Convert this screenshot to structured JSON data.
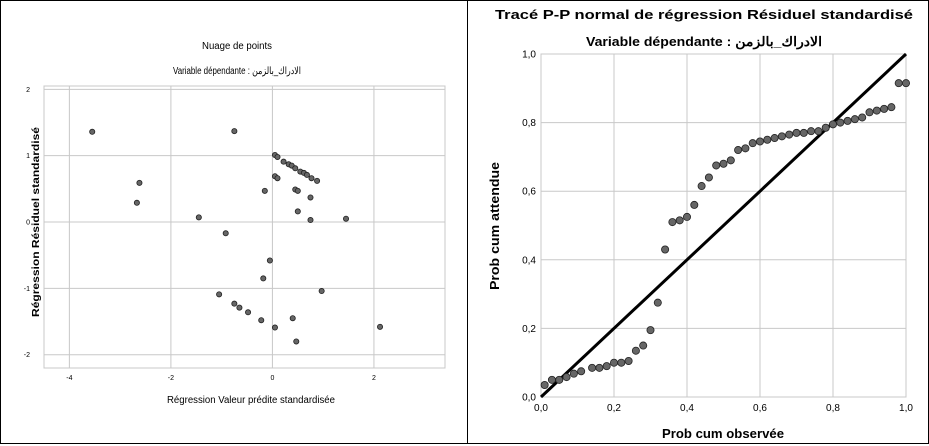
{
  "chart_data": [
    {
      "type": "scatter",
      "title": "Nuage de points",
      "subtitle": "Variable dépendante : الادراك_بالزمن",
      "xlabel": "Régression Valeur prédite standardisée",
      "ylabel": "Régression Résiduel standardisé",
      "xlim": [
        -4.5,
        3.4
      ],
      "ylim": [
        -2.2,
        2.05
      ],
      "x_ticks": [
        -4,
        -2,
        0,
        2
      ],
      "x_tick_labels": [
        "-4",
        "-2",
        "0",
        "2"
      ],
      "y_ticks": [
        -2,
        -1,
        0,
        1,
        2
      ],
      "y_tick_labels": [
        "-2",
        "-1",
        "0",
        "1",
        "2"
      ],
      "grid": true,
      "point_color": "#666666",
      "points": [
        {
          "x": -3.55,
          "y": 1.36
        },
        {
          "x": -2.62,
          "y": 0.59
        },
        {
          "x": -2.67,
          "y": 0.29
        },
        {
          "x": -1.45,
          "y": 0.07
        },
        {
          "x": -0.92,
          "y": -0.17
        },
        {
          "x": -1.05,
          "y": -1.09
        },
        {
          "x": -0.75,
          "y": 1.37
        },
        {
          "x": -0.75,
          "y": -1.23
        },
        {
          "x": -0.65,
          "y": -1.29
        },
        {
          "x": -0.48,
          "y": -1.36
        },
        {
          "x": -0.22,
          "y": -1.48
        },
        {
          "x": -0.18,
          "y": -0.85
        },
        {
          "x": -0.15,
          "y": 0.47
        },
        {
          "x": -0.05,
          "y": -0.58
        },
        {
          "x": 0.05,
          "y": -1.59
        },
        {
          "x": 0.05,
          "y": 1.01
        },
        {
          "x": 0.1,
          "y": 0.98
        },
        {
          "x": 0.05,
          "y": 0.69
        },
        {
          "x": 0.1,
          "y": 0.66
        },
        {
          "x": 0.22,
          "y": 0.91
        },
        {
          "x": 0.32,
          "y": 0.87
        },
        {
          "x": 0.38,
          "y": 0.85
        },
        {
          "x": 0.45,
          "y": 0.81
        },
        {
          "x": 0.55,
          "y": 0.76
        },
        {
          "x": 0.62,
          "y": 0.74
        },
        {
          "x": 0.68,
          "y": 0.71
        },
        {
          "x": 0.77,
          "y": 0.66
        },
        {
          "x": 0.88,
          "y": 0.62
        },
        {
          "x": 0.45,
          "y": 0.49
        },
        {
          "x": 0.5,
          "y": 0.47
        },
        {
          "x": 0.75,
          "y": 0.37
        },
        {
          "x": 0.5,
          "y": 0.16
        },
        {
          "x": 0.75,
          "y": 0.03
        },
        {
          "x": 0.4,
          "y": -1.45
        },
        {
          "x": 0.47,
          "y": -1.8
        },
        {
          "x": 0.97,
          "y": -1.04
        },
        {
          "x": 1.45,
          "y": 0.05
        },
        {
          "x": 2.12,
          "y": -1.58
        }
      ]
    },
    {
      "type": "scatter",
      "title": "Tracé P-P normal de régression Résiduel standardisé",
      "subtitle": "Variable dépendante : الادراك_بالزمن",
      "xlabel": "Prob cum observée",
      "ylabel": "Prob cum attendue",
      "xlim": [
        0,
        1
      ],
      "ylim": [
        0,
        1
      ],
      "x_ticks": [
        0,
        0.2,
        0.4,
        0.6,
        0.8,
        1
      ],
      "x_tick_labels": [
        "0,0",
        "0,2",
        "0,4",
        "0,6",
        "0,8",
        "1,0"
      ],
      "y_ticks": [
        0,
        0.2,
        0.4,
        0.6,
        0.8,
        1
      ],
      "y_tick_labels": [
        "0,0",
        "0,2",
        "0,4",
        "0,6",
        "0,8",
        "1,0"
      ],
      "grid": true,
      "reference_line": [
        [
          0,
          0
        ],
        [
          1,
          1
        ]
      ],
      "point_color": "#666666",
      "points": [
        {
          "x": 0.01,
          "y": 0.035
        },
        {
          "x": 0.03,
          "y": 0.05
        },
        {
          "x": 0.05,
          "y": 0.05
        },
        {
          "x": 0.07,
          "y": 0.058
        },
        {
          "x": 0.09,
          "y": 0.068
        },
        {
          "x": 0.11,
          "y": 0.075
        },
        {
          "x": 0.14,
          "y": 0.085
        },
        {
          "x": 0.16,
          "y": 0.085
        },
        {
          "x": 0.18,
          "y": 0.09
        },
        {
          "x": 0.2,
          "y": 0.1
        },
        {
          "x": 0.22,
          "y": 0.1
        },
        {
          "x": 0.24,
          "y": 0.105
        },
        {
          "x": 0.26,
          "y": 0.135
        },
        {
          "x": 0.28,
          "y": 0.15
        },
        {
          "x": 0.3,
          "y": 0.195
        },
        {
          "x": 0.32,
          "y": 0.275
        },
        {
          "x": 0.34,
          "y": 0.43
        },
        {
          "x": 0.36,
          "y": 0.51
        },
        {
          "x": 0.38,
          "y": 0.515
        },
        {
          "x": 0.4,
          "y": 0.525
        },
        {
          "x": 0.42,
          "y": 0.56
        },
        {
          "x": 0.44,
          "y": 0.615
        },
        {
          "x": 0.46,
          "y": 0.64
        },
        {
          "x": 0.48,
          "y": 0.675
        },
        {
          "x": 0.5,
          "y": 0.68
        },
        {
          "x": 0.52,
          "y": 0.69
        },
        {
          "x": 0.54,
          "y": 0.72
        },
        {
          "x": 0.56,
          "y": 0.725
        },
        {
          "x": 0.58,
          "y": 0.74
        },
        {
          "x": 0.6,
          "y": 0.745
        },
        {
          "x": 0.62,
          "y": 0.75
        },
        {
          "x": 0.64,
          "y": 0.755
        },
        {
          "x": 0.66,
          "y": 0.76
        },
        {
          "x": 0.68,
          "y": 0.765
        },
        {
          "x": 0.7,
          "y": 0.77
        },
        {
          "x": 0.72,
          "y": 0.77
        },
        {
          "x": 0.74,
          "y": 0.775
        },
        {
          "x": 0.76,
          "y": 0.775
        },
        {
          "x": 0.78,
          "y": 0.785
        },
        {
          "x": 0.8,
          "y": 0.795
        },
        {
          "x": 0.82,
          "y": 0.8
        },
        {
          "x": 0.84,
          "y": 0.805
        },
        {
          "x": 0.86,
          "y": 0.81
        },
        {
          "x": 0.88,
          "y": 0.815
        },
        {
          "x": 0.9,
          "y": 0.83
        },
        {
          "x": 0.92,
          "y": 0.835
        },
        {
          "x": 0.94,
          "y": 0.84
        },
        {
          "x": 0.96,
          "y": 0.845
        },
        {
          "x": 0.98,
          "y": 0.915
        },
        {
          "x": 1.0,
          "y": 0.915
        }
      ]
    }
  ]
}
